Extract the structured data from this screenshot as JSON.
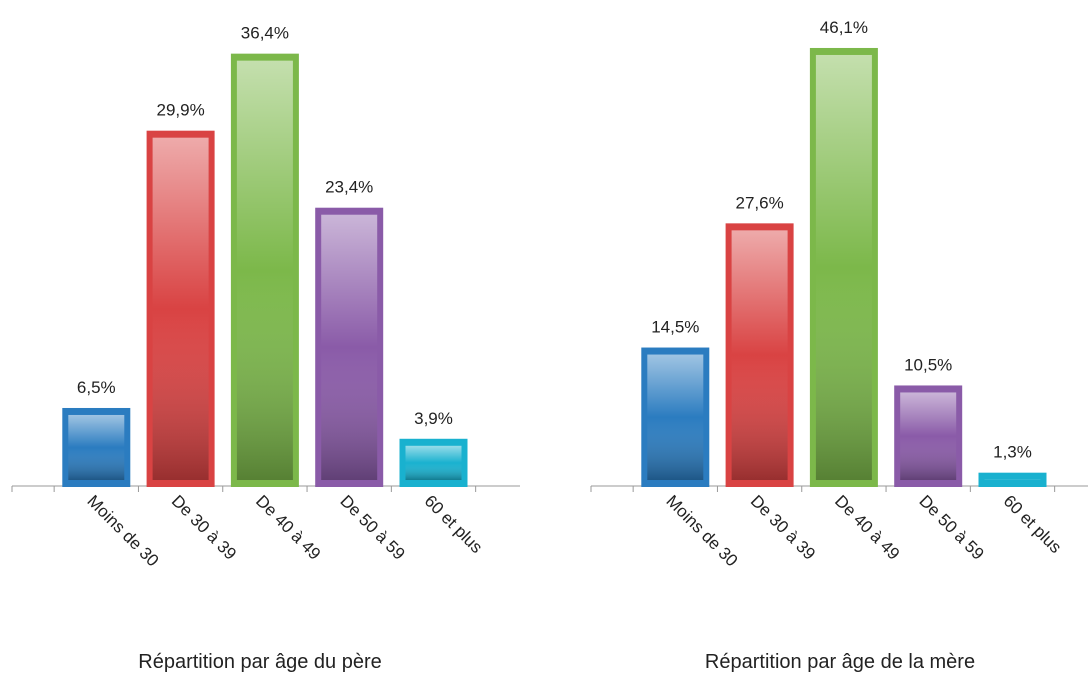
{
  "chart_data": [
    {
      "type": "bar",
      "title": "Répartition par âge du père",
      "categories": [
        "Moins de 30",
        "De 30 à 39",
        "De 40 à 49",
        "De 50 à 59",
        "60 et plus"
      ],
      "values": [
        6.5,
        29.9,
        36.4,
        23.4,
        3.9
      ],
      "value_labels": [
        "6,5%",
        "29,9%",
        "36,4%",
        "23,4%",
        "3,9%"
      ],
      "colors": [
        "#2b7cc0",
        "#d94343",
        "#7cb84a",
        "#8a5ba8",
        "#19b1cf"
      ],
      "ylim": [
        0,
        40
      ]
    },
    {
      "type": "bar",
      "title": "Répartition par âge de la mère",
      "categories": [
        "Moins de 30",
        "De 30 à 39",
        "De 40 à 49",
        "De 50 à 59",
        "60 et plus"
      ],
      "values": [
        14.5,
        27.6,
        46.1,
        10.5,
        1.3
      ],
      "value_labels": [
        "14,5%",
        "27,6%",
        "46,1%",
        "10,5%",
        "1,3%"
      ],
      "colors": [
        "#2b7cc0",
        "#d94343",
        "#7cb84a",
        "#8a5ba8",
        "#19b1cf"
      ],
      "ylim": [
        0,
        50
      ]
    }
  ]
}
